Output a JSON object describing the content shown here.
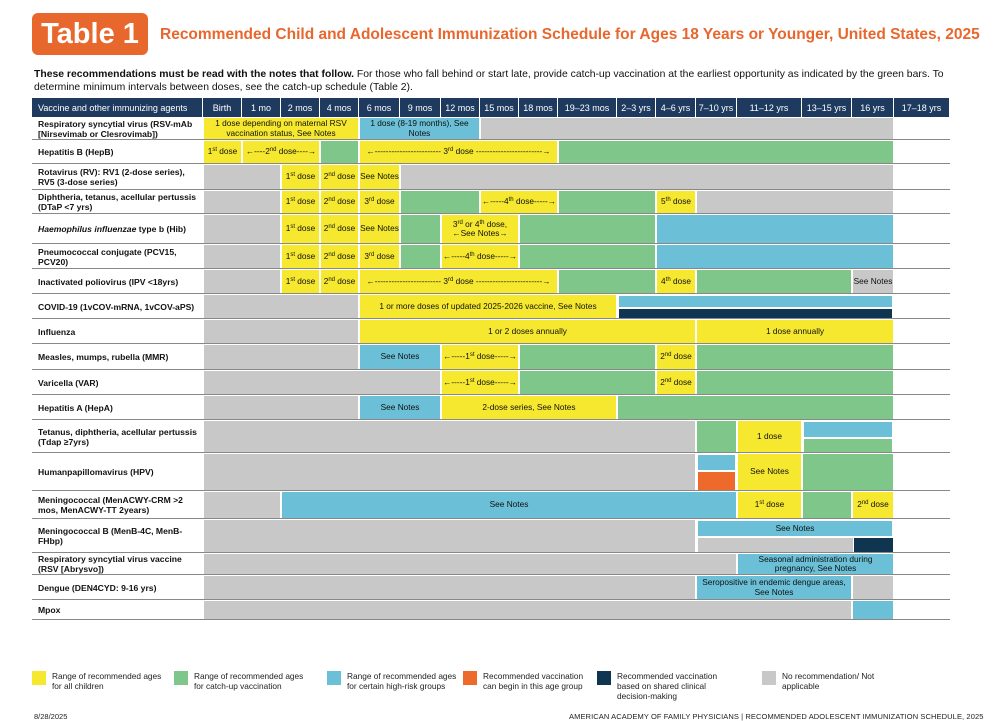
{
  "badge": "Table 1",
  "title": "Recommended Child and Adolescent Immunization Schedule for Ages 18 Years or Younger, United States, 2025",
  "notice_bold": "These recommendations must be read with the notes that follow.",
  "notice_rest": " For those who fall behind or start late, provide catch-up vaccination at the earliest opportunity as indicated by the green bars. To determine minimum intervals between doses, see the catch-up schedule (Table 2).",
  "colors": {
    "accent": "#e8672d",
    "header": "#1e3a5f",
    "yellow": "#f5e82e",
    "green": "#7ec68a",
    "blue": "#6bbfd6",
    "orange": "#ee6a2c",
    "navy": "#0f3550",
    "gray": "#c8c8c8"
  },
  "headers": [
    "Vaccine and other immunizing agents",
    "Birth",
    "1 mo",
    "2 mos",
    "4 mos",
    "6 mos",
    "9 mos",
    "12 mos",
    "15 mos",
    "18 mos",
    "19–23 mos",
    "2–3 yrs",
    "4–6 yrs",
    "7–10 yrs",
    "11–12 yrs",
    "13–15 yrs",
    "16 yrs",
    "17–18 yrs"
  ],
  "rows": [
    {
      "name": "Respiratory syncytial virus (RSV-mAb [Nirsevimab or Clesrovimab])",
      "bars": [
        {
          "s": 0,
          "e": 4,
          "c": "y",
          "t": "1 dose depending on maternal RSV vaccination status, See Notes"
        },
        {
          "s": 4,
          "e": 7,
          "c": "b",
          "t": "1 dose (8-19 months), See Notes"
        },
        {
          "s": 7,
          "e": 16,
          "c": "x",
          "t": ""
        }
      ]
    },
    {
      "name": "Hepatitis B (HepB)",
      "bars": [
        {
          "s": 0,
          "e": 1,
          "c": "y",
          "t": "1st dose"
        },
        {
          "s": 1,
          "e": 3,
          "c": "y",
          "t": "←----2nd dose----→"
        },
        {
          "s": 3,
          "e": 4,
          "c": "g",
          "t": ""
        },
        {
          "s": 4,
          "e": 9,
          "c": "y",
          "t": "←------------------------ 3rd dose ------------------------→"
        },
        {
          "s": 9,
          "e": 16,
          "c": "g",
          "t": ""
        }
      ]
    },
    {
      "name": "Rotavirus (RV): RV1 (2-dose series), RV5 (3-dose series)",
      "bars": [
        {
          "s": 0,
          "e": 2,
          "c": "x",
          "t": ""
        },
        {
          "s": 2,
          "e": 3,
          "c": "y",
          "t": "1st dose"
        },
        {
          "s": 3,
          "e": 4,
          "c": "y",
          "t": "2nd dose"
        },
        {
          "s": 4,
          "e": 5,
          "c": "y",
          "t": "See Notes"
        },
        {
          "s": 5,
          "e": 16,
          "c": "x",
          "t": ""
        }
      ]
    },
    {
      "name": "Diphtheria, tetanus, acellular pertussis (DTaP <7 yrs)",
      "bars": [
        {
          "s": 0,
          "e": 2,
          "c": "x",
          "t": ""
        },
        {
          "s": 2,
          "e": 3,
          "c": "y",
          "t": "1st dose"
        },
        {
          "s": 3,
          "e": 4,
          "c": "y",
          "t": "2nd dose"
        },
        {
          "s": 4,
          "e": 5,
          "c": "y",
          "t": "3rd dose"
        },
        {
          "s": 5,
          "e": 7,
          "c": "g",
          "t": ""
        },
        {
          "s": 7,
          "e": 9,
          "c": "y",
          "t": "←-----4th dose-----→"
        },
        {
          "s": 9,
          "e": 11,
          "c": "g",
          "t": ""
        },
        {
          "s": 11,
          "e": 12,
          "c": "y",
          "t": "5th dose"
        },
        {
          "s": 12,
          "e": 16,
          "c": "x",
          "t": ""
        }
      ]
    },
    {
      "name": "Haemophilus influenzae type b (Hib)",
      "italic": "Haemophilus influenzae",
      "rest": " type b (Hib)",
      "bars": [
        {
          "s": 0,
          "e": 2,
          "c": "x",
          "t": ""
        },
        {
          "s": 2,
          "e": 3,
          "c": "y",
          "t": "1st dose"
        },
        {
          "s": 3,
          "e": 4,
          "c": "y",
          "t": "2nd dose"
        },
        {
          "s": 4,
          "e": 5,
          "c": "y",
          "t": "See Notes"
        },
        {
          "s": 5,
          "e": 6,
          "c": "g",
          "t": ""
        },
        {
          "s": 6,
          "e": 8,
          "c": "y",
          "t": "3rd or 4th dose, ←See Notes→"
        },
        {
          "s": 8,
          "e": 11,
          "c": "g",
          "t": ""
        },
        {
          "s": 11,
          "e": 16,
          "c": "b",
          "t": ""
        }
      ]
    },
    {
      "name": "Pneumococcal conjugate (PCV15, PCV20)",
      "bars": [
        {
          "s": 0,
          "e": 2,
          "c": "x",
          "t": ""
        },
        {
          "s": 2,
          "e": 3,
          "c": "y",
          "t": "1st dose"
        },
        {
          "s": 3,
          "e": 4,
          "c": "y",
          "t": "2nd dose"
        },
        {
          "s": 4,
          "e": 5,
          "c": "y",
          "t": "3rd dose"
        },
        {
          "s": 5,
          "e": 6,
          "c": "g",
          "t": ""
        },
        {
          "s": 6,
          "e": 8,
          "c": "y",
          "t": "←-----4th dose-----→"
        },
        {
          "s": 8,
          "e": 11,
          "c": "g",
          "t": ""
        },
        {
          "s": 11,
          "e": 16,
          "c": "b",
          "t": ""
        }
      ]
    },
    {
      "name": "Inactivated poliovirus (IPV <18yrs)",
      "bars": [
        {
          "s": 0,
          "e": 2,
          "c": "x",
          "t": ""
        },
        {
          "s": 2,
          "e": 3,
          "c": "y",
          "t": "1st dose"
        },
        {
          "s": 3,
          "e": 4,
          "c": "y",
          "t": "2nd dose"
        },
        {
          "s": 4,
          "e": 9,
          "c": "y",
          "t": "←------------------------ 3rd dose ------------------------→"
        },
        {
          "s": 9,
          "e": 11,
          "c": "g",
          "t": ""
        },
        {
          "s": 11,
          "e": 12,
          "c": "y",
          "t": "4th dose"
        },
        {
          "s": 12,
          "e": 15,
          "c": "g",
          "t": ""
        },
        {
          "s": 15,
          "e": 16,
          "c": "x",
          "t": "See Notes"
        }
      ]
    },
    {
      "name": "COVID-19 (1vCOV-mRNA, 1vCOV-aPS)",
      "bars": [
        {
          "s": 0,
          "e": 4,
          "c": "x",
          "t": ""
        },
        {
          "s": 4,
          "e": 10,
          "c": "y",
          "t": "1 or more doses of updated 2025-2026 vaccine, See Notes"
        },
        {
          "s": 10,
          "e": 16,
          "c": "split",
          "top": "b",
          "bot": "n"
        }
      ]
    },
    {
      "name": "Influenza",
      "bars": [
        {
          "s": 0,
          "e": 4,
          "c": "x",
          "t": ""
        },
        {
          "s": 4,
          "e": 12,
          "c": "y",
          "t": "1 or 2 doses annually"
        },
        {
          "s": 12,
          "e": 16,
          "c": "y",
          "t": "1 dose annually"
        }
      ]
    },
    {
      "name": "Measles, mumps, rubella (MMR)",
      "bars": [
        {
          "s": 0,
          "e": 4,
          "c": "x",
          "t": ""
        },
        {
          "s": 4,
          "e": 6,
          "c": "b",
          "t": "See Notes"
        },
        {
          "s": 6,
          "e": 8,
          "c": "y",
          "t": "←-----1st dose-----→"
        },
        {
          "s": 8,
          "e": 11,
          "c": "g",
          "t": ""
        },
        {
          "s": 11,
          "e": 12,
          "c": "y",
          "t": "2nd dose"
        },
        {
          "s": 12,
          "e": 16,
          "c": "g",
          "t": ""
        }
      ]
    },
    {
      "name": "Varicella (VAR)",
      "bars": [
        {
          "s": 0,
          "e": 6,
          "c": "x",
          "t": ""
        },
        {
          "s": 6,
          "e": 8,
          "c": "y",
          "t": "←-----1st dose-----→"
        },
        {
          "s": 8,
          "e": 11,
          "c": "g",
          "t": ""
        },
        {
          "s": 11,
          "e": 12,
          "c": "y",
          "t": "2nd dose"
        },
        {
          "s": 12,
          "e": 16,
          "c": "g",
          "t": ""
        }
      ]
    },
    {
      "name": "Hepatitis A (HepA)",
      "bars": [
        {
          "s": 0,
          "e": 4,
          "c": "x",
          "t": ""
        },
        {
          "s": 4,
          "e": 6,
          "c": "b",
          "t": "See Notes"
        },
        {
          "s": 6,
          "e": 10,
          "c": "y",
          "t": "2-dose series, See Notes"
        },
        {
          "s": 10,
          "e": 16,
          "c": "g",
          "t": ""
        }
      ]
    },
    {
      "name": "Tetanus, diphtheria, acellular pertussis (Tdap ≥7yrs)",
      "bars": [
        {
          "s": 0,
          "e": 12,
          "c": "x",
          "t": ""
        },
        {
          "s": 12,
          "e": 13,
          "c": "g",
          "t": ""
        },
        {
          "s": 13,
          "e": 14,
          "c": "y",
          "t": "1 dose"
        },
        {
          "s": 14,
          "e": 16,
          "c": "split",
          "top": "b",
          "bot": "g"
        }
      ]
    },
    {
      "name": "Humanpapillomavirus (HPV)",
      "bars": [
        {
          "s": 0,
          "e": 12,
          "c": "x",
          "t": ""
        },
        {
          "s": 12,
          "e": 13,
          "c": "split3"
        },
        {
          "s": 13,
          "e": 14,
          "c": "y",
          "t": "See Notes"
        },
        {
          "s": 14,
          "e": 16,
          "c": "g",
          "t": ""
        }
      ]
    },
    {
      "name": "Meningococcal (MenACWY-CRM >2 mos, MenACWY-TT 2years)",
      "bars": [
        {
          "s": 0,
          "e": 2,
          "c": "x",
          "t": ""
        },
        {
          "s": 2,
          "e": 13,
          "c": "b",
          "t": "See Notes"
        },
        {
          "s": 13,
          "e": 14,
          "c": "y",
          "t": "1st dose"
        },
        {
          "s": 14,
          "e": 15,
          "c": "g",
          "t": ""
        },
        {
          "s": 15,
          "e": 16,
          "c": "y",
          "t": "2nd dose"
        },
        {
          "s": 16,
          "e": 16,
          "c": "g",
          "t": ""
        }
      ]
    },
    {
      "name": "Meningococcal B (MenB-4C, MenB-FHbp)",
      "bars": [
        {
          "s": 0,
          "e": 12,
          "c": "x",
          "t": ""
        },
        {
          "s": 12,
          "e": 16,
          "c": "split2",
          "topText": "See Notes"
        }
      ]
    },
    {
      "name": "Respiratory syncytial virus vaccine (RSV [Abrysvo])",
      "bars": [
        {
          "s": 0,
          "e": 13,
          "c": "x",
          "t": ""
        },
        {
          "s": 13,
          "e": 16,
          "c": "b",
          "t": "Seasonal administration during pregnancy, See Notes"
        }
      ]
    },
    {
      "name": "Dengue (DEN4CYD: 9-16 yrs)",
      "bars": [
        {
          "s": 0,
          "e": 12,
          "c": "x",
          "t": ""
        },
        {
          "s": 12,
          "e": 15,
          "c": "b",
          "t": "Seropositive in endemic dengue areas, See Notes"
        },
        {
          "s": 15,
          "e": 16,
          "c": "x",
          "t": ""
        }
      ]
    },
    {
      "name": "Mpox",
      "bars": [
        {
          "s": 0,
          "e": 15,
          "c": "x",
          "t": ""
        },
        {
          "s": 15,
          "e": 16,
          "c": "b",
          "t": ""
        }
      ]
    }
  ],
  "legend": [
    {
      "c": "y",
      "t": "Range of recommended ages for all children"
    },
    {
      "c": "g",
      "t": "Range of recommended ages for catch-up vaccination"
    },
    {
      "c": "b",
      "t": "Range of recommended ages for certain high-risk groups"
    },
    {
      "c": "o",
      "t": "Recommended vaccination can begin in this age group"
    },
    {
      "c": "n",
      "t": "Recommended vaccination based on shared clinical decision-making"
    },
    {
      "c": "x",
      "t": "No recommendation/ Not applicable"
    }
  ],
  "date": "8/28/2025",
  "footer": "AMERICAN ACADEMY OF FAMILY PHYSICIANS | RECOMMENDED ADOLESCENT IMMUNIZATION SCHEDULE, 2025"
}
